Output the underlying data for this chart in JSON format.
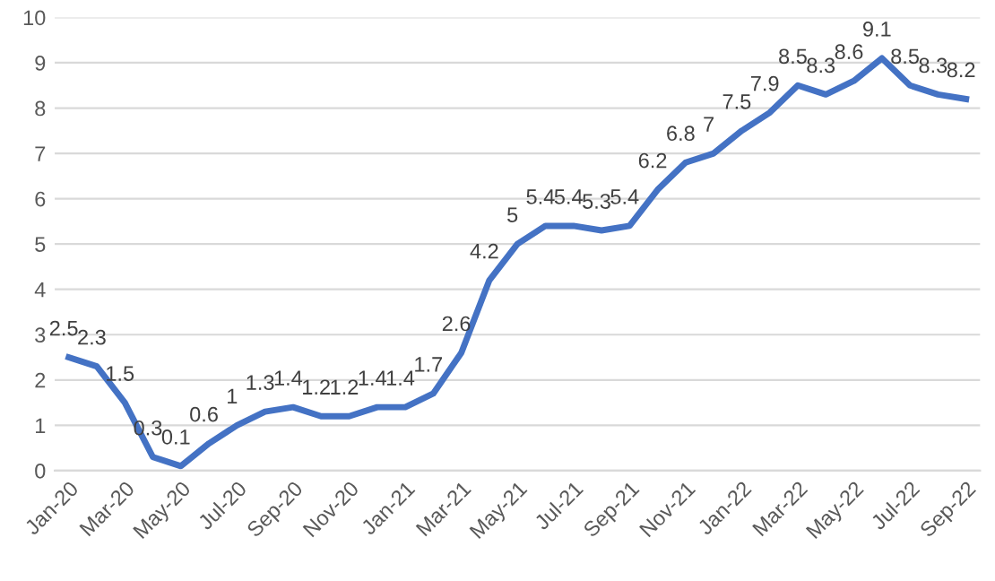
{
  "chart_data": {
    "type": "line",
    "categories": [
      "Jan-20",
      null,
      "Mar-20",
      null,
      "May-20",
      null,
      "Jul-20",
      null,
      "Sep-20",
      null,
      "Nov-20",
      null,
      "Jan-21",
      null,
      "Mar-21",
      null,
      "May-21",
      null,
      "Jul-21",
      null,
      "Sep-21",
      null,
      "Nov-21",
      null,
      "Jan-22",
      null,
      "Mar-22",
      null,
      "May-22",
      null,
      "Jul-22",
      null,
      "Sep-22"
    ],
    "series": [
      {
        "color": "#4472c4",
        "values": [
          2.5,
          2.3,
          1.5,
          0.3,
          0.1,
          0.6,
          1,
          1.3,
          1.4,
          1.2,
          1.2,
          1.4,
          1.4,
          1.7,
          2.6,
          4.2,
          5,
          5.4,
          5.4,
          5.3,
          5.4,
          6.2,
          6.8,
          7,
          7.5,
          7.9,
          8.5,
          8.3,
          8.6,
          9.1,
          8.5,
          8.3,
          8.2
        ]
      }
    ],
    "ylim": [
      0,
      10
    ],
    "yticks": [
      0,
      1,
      2,
      3,
      4,
      5,
      6,
      7,
      8,
      9,
      10
    ],
    "grid": "y",
    "data_labels": true,
    "legend": false,
    "marker": "none",
    "line_style": "solid"
  }
}
